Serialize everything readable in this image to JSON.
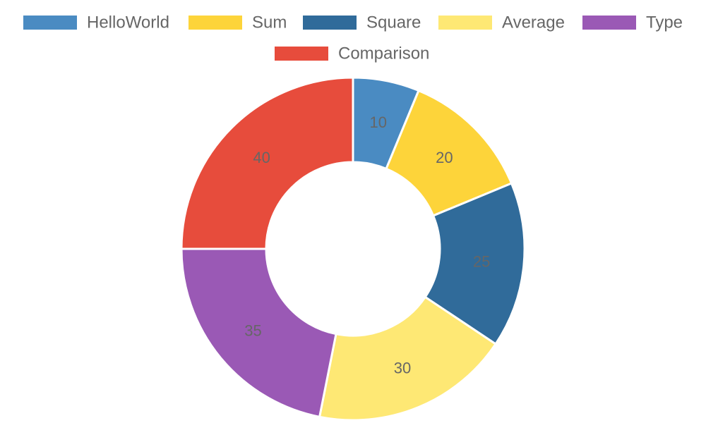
{
  "chart_data": {
    "type": "pie",
    "variant": "doughnut",
    "categories": [
      "HelloWorld",
      "Sum",
      "Square",
      "Average",
      "Type",
      "Comparison"
    ],
    "values": [
      10,
      20,
      25,
      30,
      35,
      40
    ],
    "colors": [
      "#4a8bc2",
      "#fdd43a",
      "#306b9a",
      "#fee874",
      "#9a59b5",
      "#e74c3c"
    ],
    "show_data_labels": true,
    "legend_position": "top"
  }
}
